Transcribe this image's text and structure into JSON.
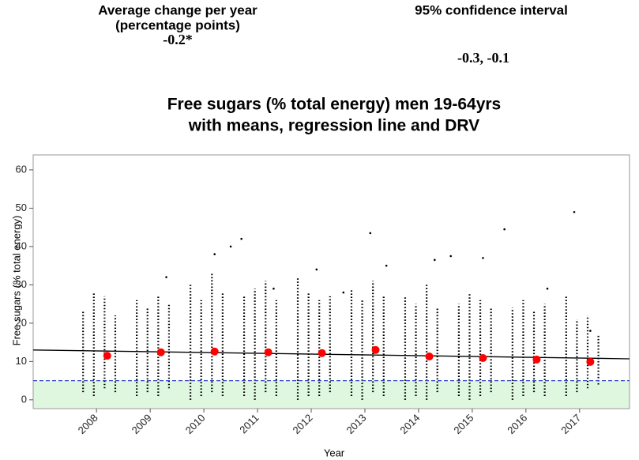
{
  "header": {
    "left_title": "Average change per year",
    "left_subtitle": "(percentage points)",
    "left_value": "-0.2*",
    "right_title": "95% confidence interval",
    "right_value": "-0.3, -0.1"
  },
  "marker": "-",
  "chart_data": {
    "type": "scatter",
    "title": [
      "Free sugars (% total energy) men 19-64yrs",
      "with means, regression line and DRV"
    ],
    "xlabel": "Year",
    "ylabel": "Free sugars (% total energy)",
    "xlim": [
      2006.82,
      2017.93
    ],
    "xticks": [
      2008,
      2009,
      2010,
      2011,
      2012,
      2013,
      2014,
      2015,
      2016,
      2017
    ],
    "ylim": [
      -2.3,
      63.9
    ],
    "yticks": [
      0,
      10,
      20,
      30,
      40,
      50,
      60
    ],
    "means": {
      "color": "#ff0000",
      "x": [
        2008.2,
        2009.2,
        2010.2,
        2011.2,
        2012.2,
        2013.2,
        2014.2,
        2015.2,
        2016.2,
        2017.2
      ],
      "values": [
        11.5,
        12.4,
        12.6,
        12.4,
        12.2,
        13.0,
        11.3,
        10.9,
        10.5,
        9.9
      ]
    },
    "regression": {
      "color": "#000000",
      "x": [
        2006.82,
        2017.93
      ],
      "values": [
        13.0,
        10.7
      ]
    },
    "drv": {
      "color": "#3344cc",
      "fill": "#dff7df",
      "value": 5
    },
    "strips": {
      "color": "#000000",
      "x": [
        2007.75,
        2007.95,
        2008.15,
        2008.35,
        2008.75,
        2008.95,
        2009.15,
        2009.35,
        2009.75,
        2009.95,
        2010.15,
        2010.35,
        2010.75,
        2010.95,
        2011.15,
        2011.35,
        2011.75,
        2011.95,
        2012.15,
        2012.35,
        2012.75,
        2012.95,
        2013.15,
        2013.35,
        2013.75,
        2013.95,
        2014.15,
        2014.35,
        2014.75,
        2014.95,
        2015.15,
        2015.35,
        2015.75,
        2015.95,
        2016.15,
        2016.35,
        2016.75,
        2016.95,
        2017.15,
        2017.35
      ],
      "low": [
        2,
        1,
        3,
        2,
        1,
        2,
        1,
        3,
        0,
        1,
        2,
        1,
        1,
        0,
        2,
        1,
        0,
        1,
        1,
        2,
        1,
        0,
        2,
        1,
        0,
        1,
        0,
        2,
        1,
        0,
        1,
        2,
        0,
        1,
        2,
        1,
        1,
        2,
        3,
        4
      ],
      "high": [
        23,
        28,
        27,
        22,
        26,
        24,
        27,
        25,
        30,
        26,
        33,
        28,
        27,
        29,
        31,
        26,
        32,
        28,
        26,
        27,
        29,
        26,
        31,
        27,
        27,
        25,
        30,
        24,
        25,
        28,
        26,
        24,
        24,
        26,
        23,
        25,
        27,
        21,
        22,
        17
      ]
    },
    "outliers": {
      "color": "#000000",
      "x": [
        2009.3,
        2010.2,
        2010.5,
        2010.7,
        2011.3,
        2012.1,
        2012.6,
        2013.1,
        2013.4,
        2014.3,
        2014.6,
        2015.2,
        2015.6,
        2016.4,
        2016.9,
        2017.2
      ],
      "values": [
        32,
        38,
        40,
        42,
        29,
        34,
        28,
        43.5,
        35,
        36.5,
        37.5,
        37,
        44.5,
        29,
        49,
        18
      ]
    }
  }
}
